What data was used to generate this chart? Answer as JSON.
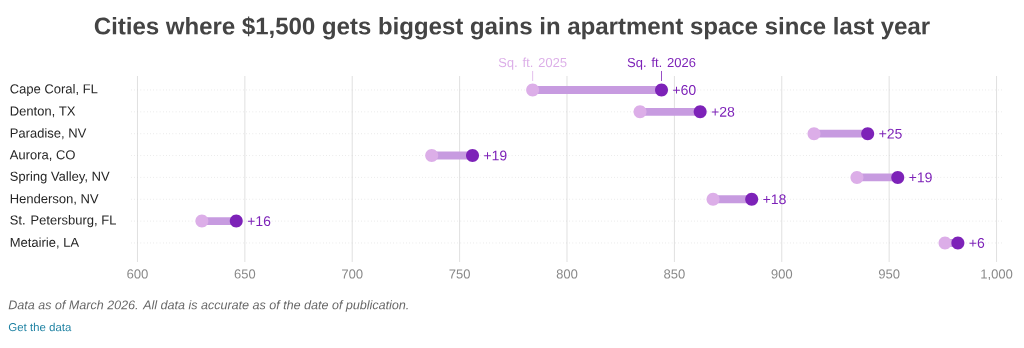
{
  "chart_data": {
    "type": "bar",
    "orientation": "horizontal",
    "title": "Cities where $1,500 gets biggest gains in apartment space since last year",
    "categories": [
      "Cape Coral, FL",
      "Denton, TX",
      "Paradise, NV",
      "Aurora, CO",
      "Spring Valley, NV",
      "Henderson, NV",
      "St. Petersburg, FL",
      "Metairie, LA"
    ],
    "series": [
      {
        "type": "bar",
        "color": "#c79be0",
        "base": [
          784,
          834,
          915,
          737,
          935,
          868,
          630,
          976
        ],
        "values": [
          60,
          28,
          25,
          19,
          19,
          18,
          16,
          6
        ],
        "value_labels": [
          "+60",
          "+28",
          "+25",
          "+19",
          "+19",
          "+18",
          "+16",
          "+6"
        ]
      },
      {
        "type": "scatter",
        "name": "Sq. ft. 2025",
        "color": "#dcaee8",
        "values": [
          784,
          834,
          915,
          737,
          935,
          868,
          630,
          976
        ]
      },
      {
        "type": "scatter",
        "name": "Sq. ft. 2026",
        "color": "#7d22b8",
        "values": [
          844,
          862,
          940,
          756,
          954,
          886,
          646,
          982
        ]
      }
    ],
    "xlim": [
      597,
      1003
    ],
    "xticks": [
      600,
      650,
      700,
      750,
      800,
      850,
      900,
      950,
      {
        "value": 1000,
        "label": "1,000"
      }
    ],
    "grid": true,
    "marker": "circle",
    "annotations": [
      "Data as of March 2026. All data is accurate as of the date of publication.",
      "Get the data"
    ]
  }
}
